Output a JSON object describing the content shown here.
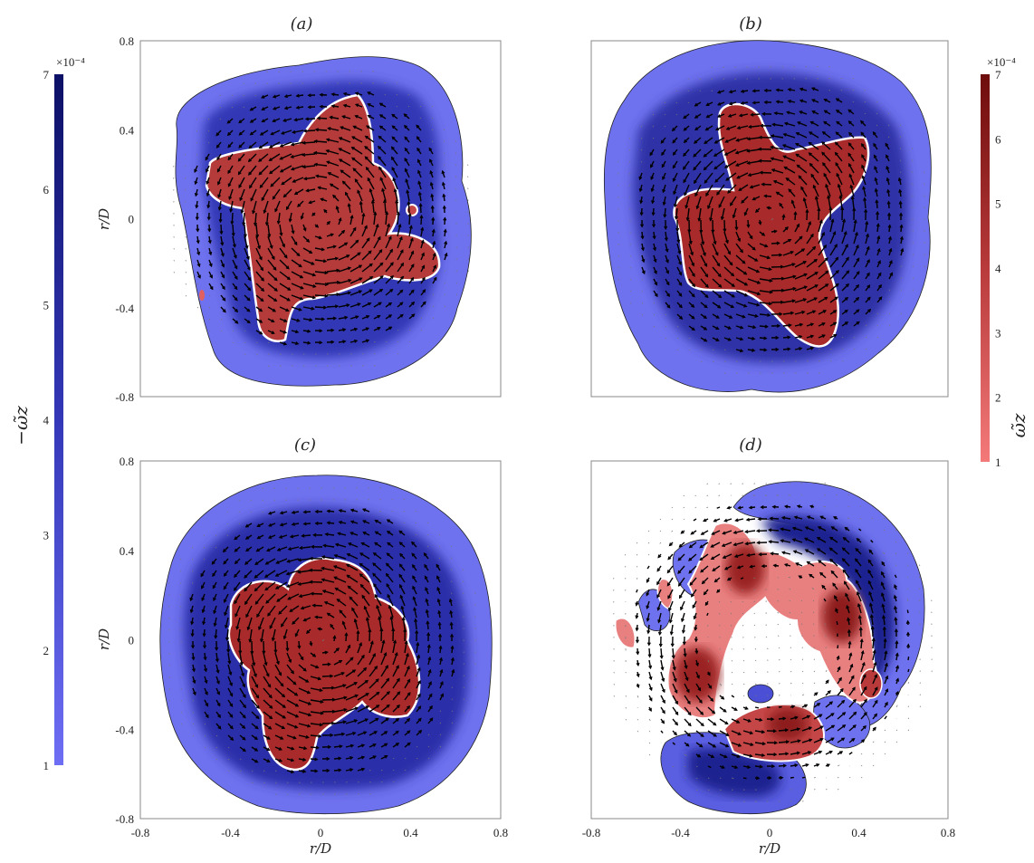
{
  "chart_data": [
    {
      "type": "heatmap",
      "title": "(a)",
      "xlabel": "",
      "ylabel": "r/D",
      "xlim": [
        -0.8,
        0.8
      ],
      "ylim": [
        -0.8,
        0.8
      ],
      "xticks": [],
      "yticks": [
        "0.8",
        "0.4",
        "0",
        "-0.4",
        "-0.8"
      ],
      "structure": "four-arm red core (positive vorticity) surrounded by blue ring (negative vorticity) with velocity vectors"
    },
    {
      "type": "heatmap",
      "title": "(b)",
      "xlabel": "",
      "ylabel": "",
      "xlim": [
        -0.8,
        0.8
      ],
      "ylim": [
        -0.8,
        0.8
      ],
      "xticks": [],
      "yticks": [],
      "structure": "four-arm pinwheel red core surrounded by blue ring with velocity vectors"
    },
    {
      "type": "heatmap",
      "title": "(c)",
      "xlabel": "r/D",
      "ylabel": "r/D",
      "xlim": [
        -0.8,
        0.8
      ],
      "ylim": [
        -0.8,
        0.8
      ],
      "xticks": [
        "-0.8",
        "-0.4",
        "0",
        "0.4",
        "0.8"
      ],
      "yticks": [
        "0.8",
        "0.4",
        "0",
        "-0.4",
        "-0.8"
      ],
      "structure": "cross-shaped red core surrounded by wide blue ring with velocity vectors"
    },
    {
      "type": "heatmap",
      "title": "(d)",
      "xlabel": "r/D",
      "ylabel": "",
      "xlim": [
        -0.8,
        0.8
      ],
      "ylim": [
        -0.8,
        0.8
      ],
      "xticks": [
        "-0.8",
        "-0.4",
        "0",
        "0.4",
        "0.8"
      ],
      "yticks": [],
      "structure": "fragmented ring of alternating red and blue vortex blobs with velocity vectors"
    }
  ],
  "colorbars": {
    "negative": {
      "label": "−ω̃z",
      "exponent_label": "×10⁻⁴",
      "ticks": [
        "7",
        "6",
        "5",
        "4",
        "3",
        "2",
        "1"
      ],
      "range": [
        1,
        7
      ],
      "color_low": "#6e6ef4",
      "color_high": "#0c1066"
    },
    "positive": {
      "label": "ω̃z",
      "exponent_label": "×10⁻⁴",
      "ticks": [
        "7",
        "6",
        "5",
        "4",
        "3",
        "2",
        "1"
      ],
      "range": [
        1,
        7
      ],
      "color_low": "#f47a7a",
      "color_high": "#6e0c0c"
    }
  },
  "colors": {
    "blue_outer": "#6f72ee",
    "blue_mid": "#4a4fd6",
    "blue_deep": "#2b2fa8",
    "blue_core": "#1c2080",
    "red_outer": "#e98080",
    "red_mid": "#c54646",
    "red_core": "#9a2424"
  }
}
